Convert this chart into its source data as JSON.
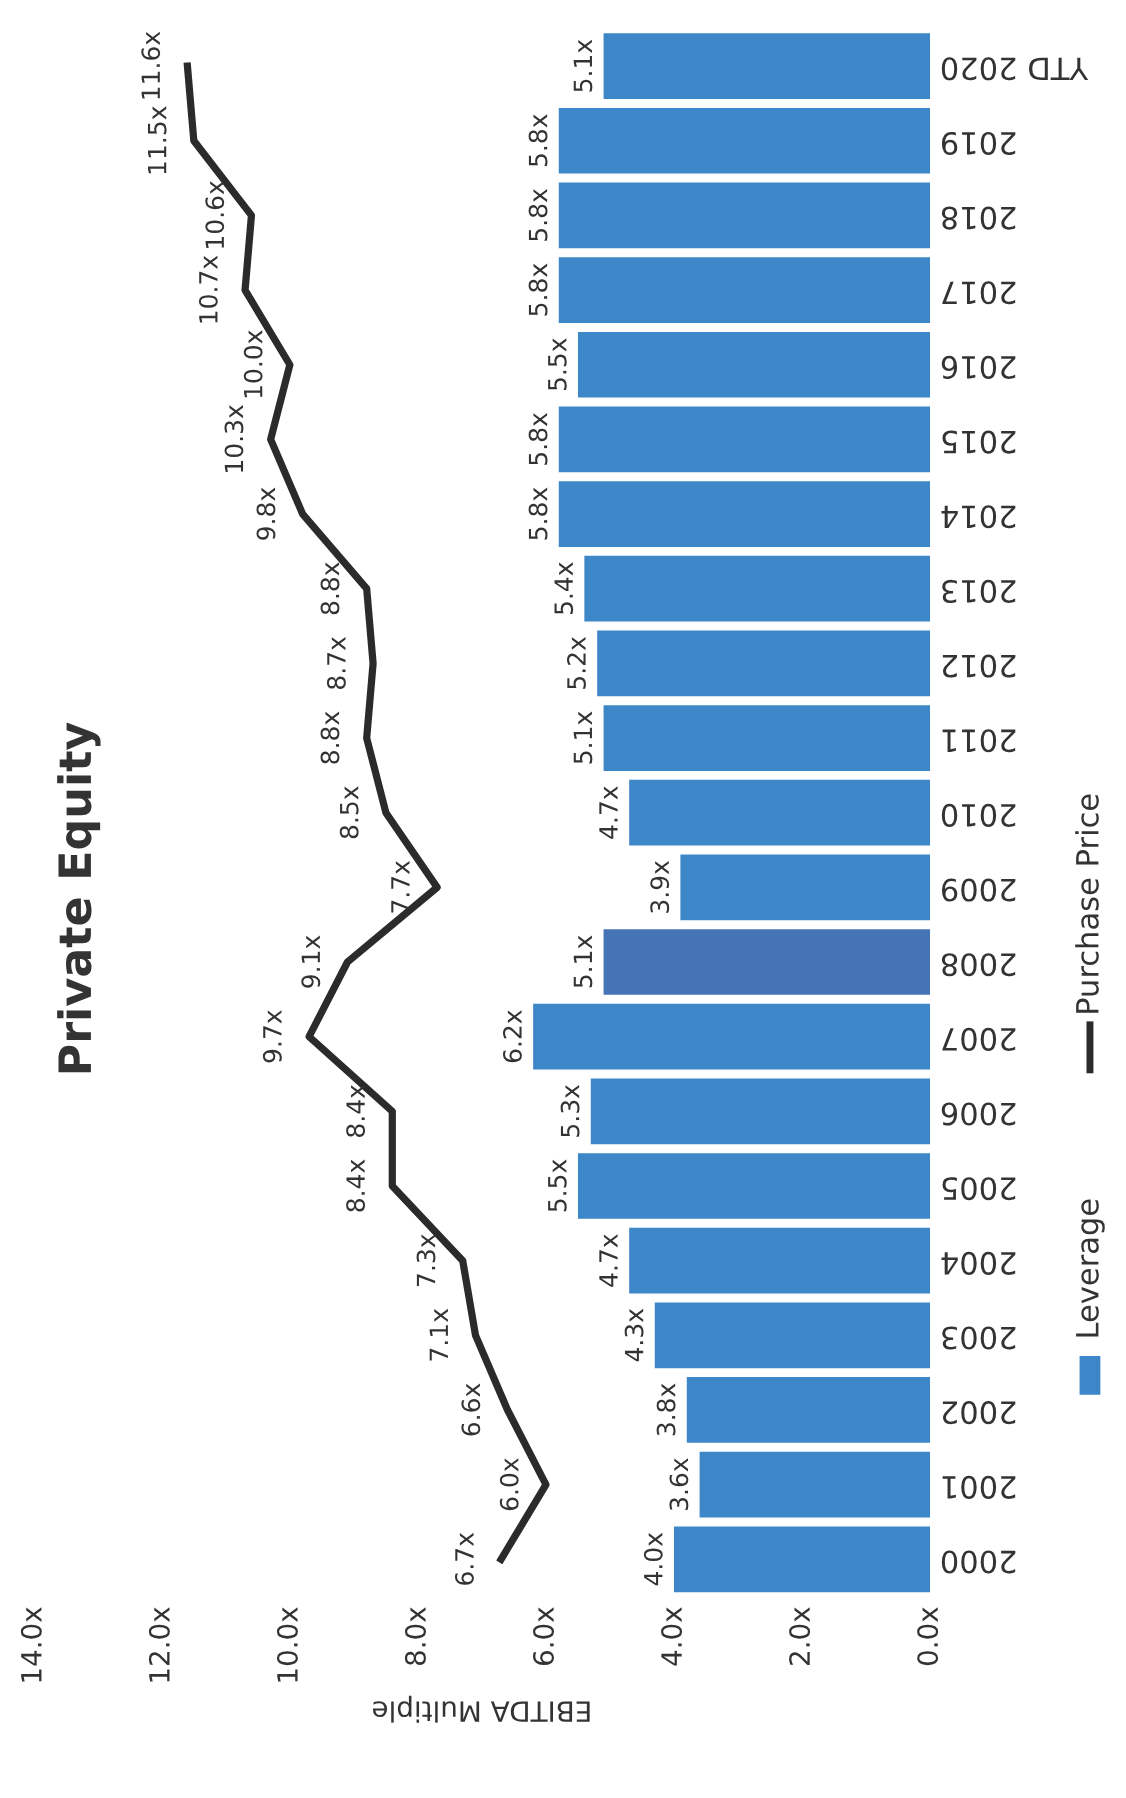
{
  "chart_data": {
    "type": "bar",
    "orientation": "horizontal",
    "title": "Private Equity",
    "xlabel": "EBITDA Multiple",
    "categories": [
      "YTD 2020",
      "2019",
      "2018",
      "2017",
      "2016",
      "2015",
      "2014",
      "2013",
      "2012",
      "2011",
      "2010",
      "2009",
      "2008",
      "2007",
      "2006",
      "2005",
      "2004",
      "2003",
      "2002",
      "2001",
      "2000"
    ],
    "series": [
      {
        "name": "Leverage",
        "color": "#3d86c8",
        "colors": [
          "#3d86c8",
          "#3d86c8",
          "#3d86c8",
          "#3d86c8",
          "#3d86c8",
          "#3d86c8",
          "#3d86c8",
          "#3d86c8",
          "#3d86c8",
          "#3d86c8",
          "#3d86c8",
          "#3d86c8",
          "#4573b5",
          "#3d86c8",
          "#3d86c8",
          "#3d86c8",
          "#3d86c8",
          "#3d86c8",
          "#3d86c8",
          "#3d86c8",
          "#3d86c8"
        ],
        "values": [
          5.1,
          5.8,
          5.8,
          5.8,
          5.5,
          5.8,
          5.8,
          5.4,
          5.2,
          5.1,
          4.7,
          3.9,
          5.1,
          6.2,
          5.3,
          5.5,
          4.7,
          4.3,
          3.8,
          3.6,
          4.0
        ],
        "value_labels": [
          "5.1x",
          "5.8x",
          "5.8x",
          "5.8x",
          "5.5x",
          "5.8x",
          "5.8x",
          "5.4x",
          "5.2x",
          "5.1x",
          "4.7x",
          "3.9x",
          "5.1x",
          "6.2x",
          "5.3x",
          "5.5x",
          "4.7x",
          "4.3x",
          "3.8x",
          "3.6x",
          "4.0x"
        ]
      },
      {
        "name": "Purchase Price",
        "type": "line",
        "color": "#2b2b2b",
        "values": [
          11.6,
          11.5,
          10.6,
          10.7,
          10.0,
          10.3,
          9.8,
          8.8,
          8.7,
          8.8,
          8.5,
          7.7,
          9.1,
          9.7,
          8.4,
          8.4,
          7.3,
          7.1,
          6.6,
          6.0,
          6.7
        ],
        "value_labels": [
          "11.6x",
          "11.5x",
          "10.6x",
          "10.7x",
          "10.0x",
          "10.3x",
          "9.8x",
          "8.8x",
          "8.7x",
          "8.8x",
          "8.5x",
          "7.7x",
          "9.1x",
          "9.7x",
          "8.4x",
          "8.4x",
          "7.3x",
          "7.1x",
          "6.6x",
          "6.0x",
          "6.7x"
        ]
      }
    ],
    "xlim": [
      14,
      0
    ],
    "xticks": [
      {
        "value": 14,
        "label": "14.0x"
      },
      {
        "value": 12,
        "label": "12.0x"
      },
      {
        "value": 10,
        "label": "10.0x"
      },
      {
        "value": 8,
        "label": "8.0x"
      },
      {
        "value": 6,
        "label": "6.0x"
      },
      {
        "value": 4,
        "label": "4.0x"
      },
      {
        "value": 2,
        "label": "2.0x"
      },
      {
        "value": 0,
        "label": "0.0x"
      }
    ],
    "legend": "right",
    "grid": false,
    "marker": "none",
    "line_style": "solid"
  }
}
